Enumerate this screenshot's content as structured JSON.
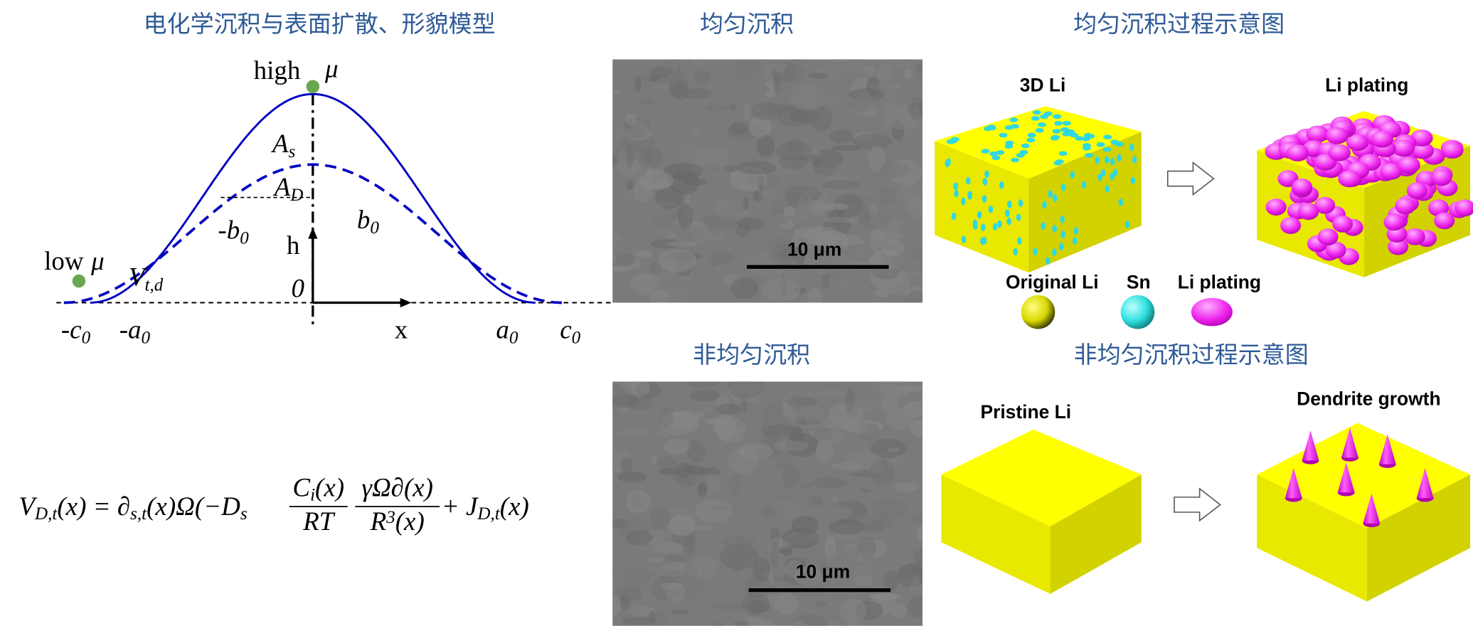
{
  "titles": {
    "model": "电化学沉积与表面扩散、形貌模型",
    "uniform": "均匀沉积",
    "uniform_process": "均匀沉积过程示意图",
    "nonuniform": "非均匀沉积",
    "nonuniform_process": "非均匀沉积过程示意图"
  },
  "graph_labels": [
    {
      "t": "high"
    },
    {
      "t": "μ"
    },
    {
      "t": "low"
    },
    {
      "t": "μ"
    },
    {
      "t": "A",
      "sub": "s"
    },
    {
      "t": "A",
      "sub": "D"
    },
    {
      "t": "-b",
      "sub": "0"
    },
    {
      "t": "b",
      "sub": "0"
    },
    {
      "t": "h"
    },
    {
      "t": "0"
    },
    {
      "t": "V",
      "sub": "t,d"
    },
    {
      "t": "-c",
      "sub": "0"
    },
    {
      "t": "-a",
      "sub": "0"
    },
    {
      "t": "x"
    },
    {
      "t": "a",
      "sub": "0"
    },
    {
      "t": "c",
      "sub": "0"
    }
  ],
  "equation": {
    "left": [
      {
        "t": "V"
      },
      {
        "sub": "D,t"
      },
      {
        "t": "(x) = ∂"
      },
      {
        "sub": "s,t"
      },
      {
        "t": "(x)Ω(−D"
      },
      {
        "sub": "s"
      }
    ],
    "fractions": [
      {
        "numerator": [
          {
            "t": "C"
          },
          {
            "sub": "i"
          },
          {
            "t": "(x)"
          }
        ],
        "denominator": [
          {
            "t": "RT"
          }
        ]
      },
      {
        "numerator": [
          {
            "t": "γΩ∂(x)"
          }
        ],
        "denominator": [
          {
            "t": "R"
          },
          {
            "sup": "3"
          },
          {
            "t": "(x)"
          }
        ]
      }
    ],
    "right": [
      {
        "t": "+ J"
      },
      {
        "sub": "D,t"
      },
      {
        "t": "(x)"
      }
    ]
  },
  "sem": {
    "scale_bar_top": "10 μm",
    "scale_bar_bottom": "10 μm"
  },
  "schematic": {
    "three_d_li": "3D Li",
    "li_plating": "Li plating",
    "legend": [
      "Original Li",
      "Sn",
      "Li plating"
    ],
    "pristine": "Pristine Li",
    "dendrite": "Dendrite growth"
  }
}
